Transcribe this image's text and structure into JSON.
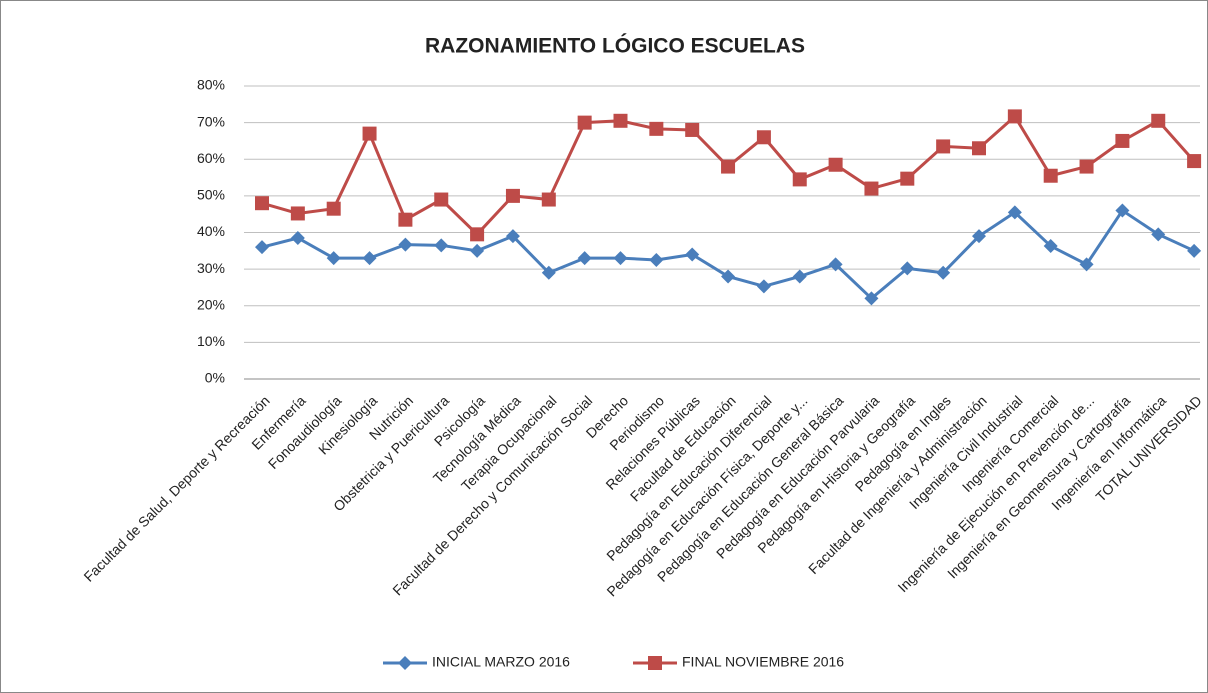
{
  "chart_data": {
    "type": "line",
    "title": "RAZONAMIENTO LÓGICO ESCUELAS",
    "categories": [
      "Facultad de Salud, Deporte y Recreación",
      "Enfermería",
      "Fonoaudiología",
      "Kinesiología",
      "Nutrición",
      "Obstetricia y Puericultura",
      "Psicología",
      "Tecnología Médica",
      "Terapia Ocupacional",
      "Facultad de Derecho y Comunicación Social",
      "Derecho",
      "Periodismo",
      "Relaciones Públicas",
      "Facultad de Educación",
      "Pedagogía en Educación Diferencial",
      "Pedagogía en Educación Física, Deporte y...",
      "Pedagogía en Educación General Básica",
      "Pedagogía en Educación Parvularia",
      "Pedagogía en Historia y Geografía",
      "Pedagogía en Ingles",
      "Facultad de Ingeniería y Administración",
      "Ingeniería Civil Industrial",
      "Ingeniería Comercial",
      "Ingeniería de Ejecución en Prevención de...",
      "Ingeniería en Geomensura y Cartografía",
      "Ingeniería en Informática",
      "TOTAL  UNIVERSIDAD"
    ],
    "series": [
      {
        "name": "INICIAL MARZO 2016",
        "color": "#4a7ebb",
        "marker": "diamond",
        "values": [
          36,
          38.5,
          33,
          33,
          36.7,
          36.5,
          35,
          39,
          29,
          33,
          33,
          32.5,
          34,
          28,
          25.3,
          28,
          31.3,
          22,
          30.2,
          29,
          39,
          45.5,
          36.3,
          31.3,
          46,
          39.5,
          35
        ]
      },
      {
        "name": "FINAL NOVIEMBRE 2016",
        "color": "#be4b48",
        "marker": "square",
        "values": [
          48,
          45.2,
          46.5,
          67,
          43.5,
          49,
          39.5,
          50,
          49,
          70,
          70.5,
          68.3,
          68,
          58,
          66,
          54.5,
          58.5,
          52,
          54.7,
          63.5,
          63,
          71.7,
          55.5,
          58,
          65,
          70.5,
          59.5
        ]
      }
    ],
    "ylim": [
      0,
      80
    ],
    "yticks": [
      {
        "value": 0,
        "label": "0%"
      },
      {
        "value": 10,
        "label": "10%"
      },
      {
        "value": 20,
        "label": "20%"
      },
      {
        "value": 30,
        "label": "30%"
      },
      {
        "value": 40,
        "label": "40%"
      },
      {
        "value": 50,
        "label": "50%"
      },
      {
        "value": 60,
        "label": "60%"
      },
      {
        "value": 70,
        "label": "70%"
      },
      {
        "value": 80,
        "label": "80%"
      }
    ],
    "grid": true,
    "legend": "bottom"
  }
}
